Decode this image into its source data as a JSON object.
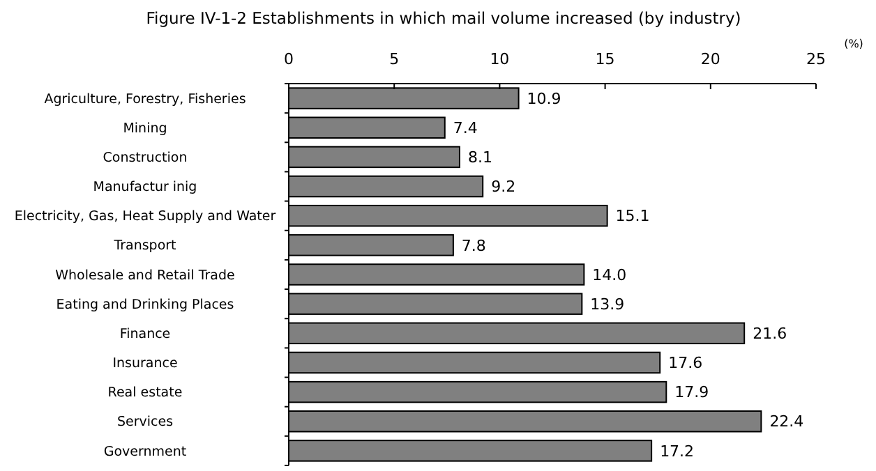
{
  "chart_data": {
    "type": "bar",
    "orientation": "horizontal",
    "title": "Figure IV-1-2 Establishments in which mail volume increased (by industry)",
    "xlabel": "(%)",
    "categories": [
      "Agriculture, Forestry, Fisheries",
      "Mining",
      "Construction",
      "Manufactur inig",
      "Electricity, Gas, Heat Supply and Water",
      "Transport",
      "Wholesale and Retail Trade",
      "Eating and Drinking Places",
      "Finance",
      "Insurance",
      "Real estate",
      "Services",
      "Government"
    ],
    "values": [
      10.9,
      7.4,
      8.1,
      9.2,
      15.1,
      7.8,
      14.0,
      13.9,
      21.6,
      17.6,
      17.9,
      22.4,
      17.2
    ],
    "value_labels": [
      "10.9",
      "7.4",
      "8.1",
      "9.2",
      "15.1",
      "7.8",
      "14.0",
      "13.9",
      "21.6",
      "17.6",
      "17.9",
      "22.4",
      "17.2"
    ],
    "color": "#808080",
    "xlim": [
      0,
      25
    ],
    "xticks": [
      0,
      5,
      10,
      15,
      20,
      25
    ],
    "grid": false
  }
}
